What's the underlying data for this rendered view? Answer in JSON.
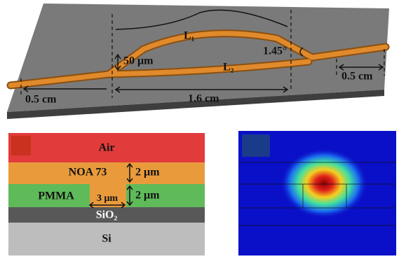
{
  "top": {
    "l1": "L₁",
    "l2": "L₂",
    "separation": "50 μm",
    "angle": "1.45°",
    "left_length": "0.5 cm",
    "right_length": "0.5 cm",
    "center_length": "1.6 cm"
  },
  "stack": {
    "layers": [
      "Air",
      "NOA 73",
      "PMMA",
      "SiO₂",
      "Si"
    ],
    "noa_thickness": "2 μm",
    "pmma_thickness": "2 μm",
    "core_width": "3 μm"
  }
}
